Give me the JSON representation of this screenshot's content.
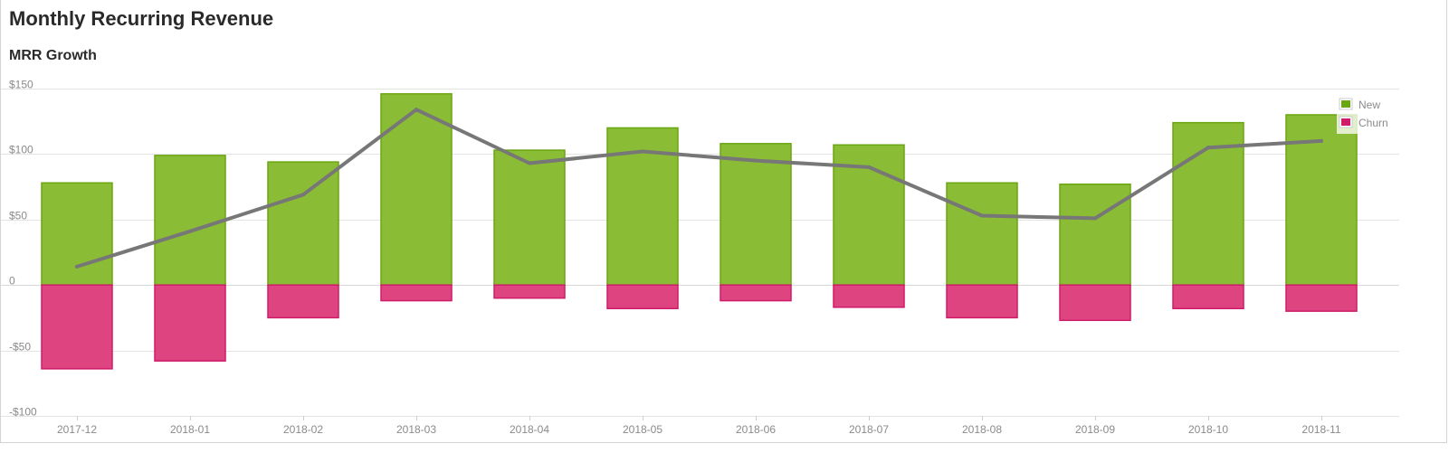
{
  "header": {
    "title": "Monthly Recurring Revenue"
  },
  "chart_data": {
    "type": "bar",
    "title": "MRR Growth",
    "xlabel": "",
    "ylabel": "",
    "categories": [
      "2017-12",
      "2018-01",
      "2018-02",
      "2018-03",
      "2018-04",
      "2018-05",
      "2018-06",
      "2018-07",
      "2018-08",
      "2018-09",
      "2018-10",
      "2018-11"
    ],
    "series": [
      {
        "name": "New",
        "kind": "bar",
        "color": "#8bbc35",
        "stroke": "#6aa612",
        "values": [
          78,
          99,
          94,
          146,
          103,
          120,
          108,
          107,
          78,
          77,
          124,
          130
        ]
      },
      {
        "name": "Churn",
        "kind": "bar",
        "color": "#de4580",
        "stroke": "#d01b6a",
        "values": [
          -64,
          -58,
          -25,
          -12,
          -10,
          -18,
          -12,
          -17,
          -25,
          -27,
          -18,
          -20
        ]
      },
      {
        "kind": "line",
        "color": "#777777",
        "values": [
          14,
          41,
          69,
          134,
          93,
          102,
          95,
          90,
          53,
          51,
          105,
          110
        ]
      }
    ],
    "yticks": [
      {
        "value": 150,
        "label": "$150"
      },
      {
        "value": 100,
        "label": "$100"
      },
      {
        "value": 50,
        "label": "$50"
      },
      {
        "value": 0,
        "label": "0"
      },
      {
        "value": -50,
        "label": "-$50"
      },
      {
        "value": -100,
        "label": "-$100"
      }
    ],
    "ylim": [
      -100,
      150
    ],
    "grid": true,
    "legend_position": "top-right"
  }
}
